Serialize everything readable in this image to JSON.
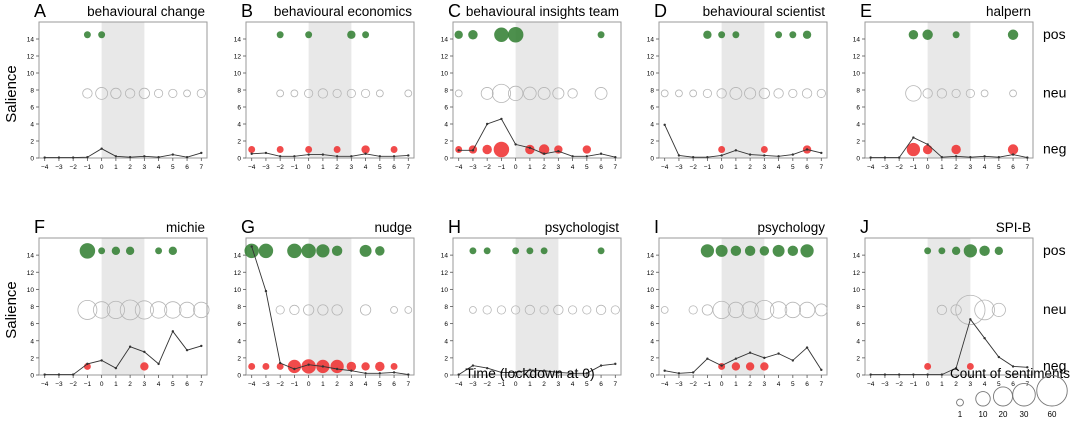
{
  "chart_data": {
    "type": "scatter",
    "figure": {
      "ylabel": "Salience",
      "xlabel": "Time (lockdown at 0)",
      "row_labels": [
        "pos",
        "neu",
        "neg"
      ],
      "x_ticks": [
        -4,
        -3,
        -2,
        -1,
        0,
        1,
        2,
        3,
        4,
        5,
        6,
        7
      ],
      "y_ticks": [
        0,
        2,
        4,
        6,
        8,
        10,
        12,
        14
      ],
      "xlim": [
        -4.4,
        7.4
      ],
      "ylim": [
        0,
        16
      ],
      "shaded_x": [
        0,
        3
      ],
      "sentiment_rows": {
        "pos": 14.5,
        "neu": 7.6,
        "neg": 1.0
      },
      "size_legend": {
        "title": "Count of sentiments",
        "values": [
          1,
          10,
          20,
          30,
          60
        ]
      },
      "colors": {
        "pos": "#2e7d2e",
        "neu": "#c8c8c8",
        "neg": "#ef2b2b",
        "line": "#333333",
        "shade": "#e8e8e8"
      }
    },
    "panels": [
      {
        "letter": "A",
        "title": "behavioural change",
        "line": [
          [
            -4,
            0.05
          ],
          [
            -3,
            0.05
          ],
          [
            -2,
            0.05
          ],
          [
            -1,
            0.1
          ],
          [
            0,
            1.1
          ],
          [
            1,
            0.2
          ],
          [
            2,
            0.1
          ],
          [
            3,
            0.2
          ],
          [
            4,
            0.1
          ],
          [
            5,
            0.4
          ],
          [
            6,
            0.1
          ],
          [
            7,
            0.6
          ]
        ],
        "pos": [
          [
            -1,
            1
          ],
          [
            0,
            1
          ]
        ],
        "neu": [
          [
            -1,
            3
          ],
          [
            0,
            6
          ],
          [
            1,
            4
          ],
          [
            2,
            3
          ],
          [
            3,
            4
          ],
          [
            4,
            2
          ],
          [
            5,
            2
          ],
          [
            6,
            1
          ],
          [
            7,
            2
          ]
        ],
        "neg": []
      },
      {
        "letter": "B",
        "title": "behavioural economics",
        "line": [
          [
            -4,
            0.5
          ],
          [
            -3,
            0.6
          ],
          [
            -2,
            0.2
          ],
          [
            -1,
            0.2
          ],
          [
            0,
            0.4
          ],
          [
            1,
            0.4
          ],
          [
            2,
            0.2
          ],
          [
            3,
            0.2
          ],
          [
            4,
            0.5
          ],
          [
            5,
            0.2
          ],
          [
            6,
            0.2
          ],
          [
            7,
            0.3
          ]
        ],
        "pos": [
          [
            -2,
            1
          ],
          [
            0,
            1
          ],
          [
            3,
            2
          ],
          [
            4,
            1
          ]
        ],
        "neu": [
          [
            -2,
            1
          ],
          [
            -1,
            1
          ],
          [
            0,
            2
          ],
          [
            1,
            3
          ],
          [
            2,
            2
          ],
          [
            3,
            2
          ],
          [
            4,
            2
          ],
          [
            5,
            1
          ],
          [
            7,
            1
          ]
        ],
        "neg": [
          [
            -4,
            1
          ],
          [
            -2,
            1
          ],
          [
            0,
            1
          ],
          [
            2,
            1
          ],
          [
            4,
            2
          ],
          [
            6,
            1
          ]
        ]
      },
      {
        "letter": "C",
        "title": "behavioural insights team",
        "line": [
          [
            -4,
            0.9
          ],
          [
            -3,
            0.9
          ],
          [
            -2,
            4.0
          ],
          [
            -1,
            4.6
          ],
          [
            0,
            1.6
          ],
          [
            1,
            1.2
          ],
          [
            2,
            0.5
          ],
          [
            3,
            0.8
          ],
          [
            4,
            0.2
          ],
          [
            5,
            0.2
          ],
          [
            6,
            0.5
          ],
          [
            7,
            0.1
          ]
        ],
        "pos": [
          [
            -4,
            2
          ],
          [
            -3,
            3
          ],
          [
            -1,
            10
          ],
          [
            0,
            12
          ],
          [
            6,
            1
          ]
        ],
        "neu": [
          [
            -4,
            1
          ],
          [
            -2,
            6
          ],
          [
            -1,
            18
          ],
          [
            0,
            10
          ],
          [
            1,
            7
          ],
          [
            2,
            6
          ],
          [
            3,
            5
          ],
          [
            4,
            3
          ],
          [
            6,
            6
          ]
        ],
        "neg": [
          [
            -4,
            1
          ],
          [
            -3,
            2
          ],
          [
            -2,
            3
          ],
          [
            -1,
            12
          ],
          [
            1,
            3
          ],
          [
            2,
            4
          ],
          [
            3,
            2
          ],
          [
            5,
            2
          ]
        ]
      },
      {
        "letter": "D",
        "title": "behavioural scientist",
        "line": [
          [
            -4,
            3.9
          ],
          [
            -3,
            0.3
          ],
          [
            -2,
            0.1
          ],
          [
            -1,
            0.1
          ],
          [
            0,
            0.3
          ],
          [
            1,
            0.9
          ],
          [
            2,
            0.4
          ],
          [
            3,
            0.3
          ],
          [
            4,
            0.2
          ],
          [
            5,
            0.4
          ],
          [
            6,
            1.0
          ],
          [
            7,
            0.6
          ]
        ],
        "pos": [
          [
            -1,
            2
          ],
          [
            0,
            1
          ],
          [
            1,
            1
          ],
          [
            4,
            1
          ],
          [
            5,
            1
          ],
          [
            6,
            2
          ]
        ],
        "neu": [
          [
            -4,
            1
          ],
          [
            -3,
            1
          ],
          [
            -2,
            1
          ],
          [
            -1,
            2
          ],
          [
            0,
            3
          ],
          [
            1,
            6
          ],
          [
            2,
            5
          ],
          [
            3,
            4
          ],
          [
            4,
            3
          ],
          [
            5,
            2
          ],
          [
            6,
            3
          ],
          [
            7,
            2
          ]
        ],
        "neg": [
          [
            0,
            1
          ],
          [
            3,
            1
          ],
          [
            6,
            2
          ]
        ]
      },
      {
        "letter": "E",
        "title": "halpern",
        "line": [
          [
            -4,
            0.05
          ],
          [
            -3,
            0.05
          ],
          [
            -2,
            0.05
          ],
          [
            -1,
            2.4
          ],
          [
            0,
            1.6
          ],
          [
            1,
            0.1
          ],
          [
            2,
            0.2
          ],
          [
            3,
            0.1
          ],
          [
            4,
            0.2
          ],
          [
            5,
            0.1
          ],
          [
            6,
            0.4
          ],
          [
            7,
            0.05
          ]
        ],
        "pos": [
          [
            -1,
            3
          ],
          [
            0,
            4
          ],
          [
            2,
            1
          ],
          [
            6,
            4
          ]
        ],
        "neu": [
          [
            -1,
            12
          ],
          [
            0,
            3
          ],
          [
            1,
            3
          ],
          [
            2,
            2
          ],
          [
            3,
            2
          ],
          [
            4,
            1
          ],
          [
            6,
            1
          ]
        ],
        "neg": [
          [
            -1,
            8
          ],
          [
            0,
            3
          ],
          [
            2,
            3
          ],
          [
            6,
            4
          ]
        ]
      },
      {
        "letter": "F",
        "title": "michie",
        "line": [
          [
            -4,
            0.05
          ],
          [
            -3,
            0.05
          ],
          [
            -2,
            0.05
          ],
          [
            -1,
            1.3
          ],
          [
            0,
            1.7
          ],
          [
            1,
            0.8
          ],
          [
            2,
            3.3
          ],
          [
            3,
            2.7
          ],
          [
            4,
            1.3
          ],
          [
            5,
            5.1
          ],
          [
            6,
            2.9
          ],
          [
            7,
            3.4
          ]
        ],
        "pos": [
          [
            -1,
            12
          ],
          [
            0,
            1
          ],
          [
            1,
            2
          ],
          [
            2,
            2
          ],
          [
            4,
            1
          ],
          [
            5,
            2
          ]
        ],
        "neu": [
          [
            -1,
            20
          ],
          [
            0,
            14
          ],
          [
            1,
            16
          ],
          [
            2,
            22
          ],
          [
            3,
            18
          ],
          [
            4,
            14
          ],
          [
            5,
            14
          ],
          [
            6,
            12
          ],
          [
            7,
            12
          ]
        ],
        "neg": [
          [
            -1,
            1
          ],
          [
            3,
            2
          ]
        ]
      },
      {
        "letter": "G",
        "title": "nudge",
        "line": [
          [
            -4,
            15.0
          ],
          [
            -3,
            9.8
          ],
          [
            -2,
            1.4
          ],
          [
            -1,
            0.7
          ],
          [
            0,
            1.2
          ],
          [
            1,
            1.0
          ],
          [
            2,
            0.7
          ],
          [
            3,
            0.5
          ],
          [
            4,
            0.2
          ],
          [
            5,
            0.2
          ],
          [
            6,
            0.3
          ],
          [
            7,
            0.05
          ]
        ],
        "pos": [
          [
            -4,
            10
          ],
          [
            -3,
            10
          ],
          [
            -1,
            10
          ],
          [
            0,
            10
          ],
          [
            1,
            8
          ],
          [
            2,
            4
          ],
          [
            4,
            6
          ],
          [
            5,
            3
          ]
        ],
        "neu": [
          [
            -2,
            2
          ],
          [
            -1,
            3
          ],
          [
            0,
            4
          ],
          [
            1,
            4
          ],
          [
            2,
            4
          ],
          [
            4,
            4
          ],
          [
            6,
            1
          ],
          [
            7,
            1
          ]
        ],
        "neg": [
          [
            -4,
            1
          ],
          [
            -3,
            1
          ],
          [
            -2,
            1
          ],
          [
            -1,
            8
          ],
          [
            0,
            10
          ],
          [
            1,
            8
          ],
          [
            2,
            8
          ],
          [
            3,
            3
          ],
          [
            4,
            2
          ],
          [
            5,
            3
          ],
          [
            6,
            1
          ]
        ]
      },
      {
        "letter": "H",
        "title": "psychologist",
        "line": [
          [
            -4,
            0.05
          ],
          [
            -3,
            1.1
          ],
          [
            -2,
            0.8
          ],
          [
            -1,
            0.3
          ],
          [
            0,
            0.3
          ],
          [
            1,
            0.6
          ],
          [
            2,
            0.5
          ],
          [
            3,
            0.3
          ],
          [
            4,
            0.2
          ],
          [
            5,
            0.2
          ],
          [
            6,
            1.1
          ],
          [
            7,
            1.3
          ]
        ],
        "pos": [
          [
            -3,
            1
          ],
          [
            -2,
            1
          ],
          [
            0,
            1
          ],
          [
            1,
            1
          ],
          [
            2,
            1
          ],
          [
            6,
            1
          ]
        ],
        "neu": [
          [
            -3,
            1
          ],
          [
            -2,
            2
          ],
          [
            -1,
            2
          ],
          [
            0,
            2
          ],
          [
            1,
            3
          ],
          [
            2,
            2
          ],
          [
            3,
            3
          ],
          [
            4,
            2
          ],
          [
            5,
            2
          ],
          [
            6,
            3
          ],
          [
            7,
            2
          ]
        ],
        "neg": []
      },
      {
        "letter": "I",
        "title": "psychology",
        "line": [
          [
            -4,
            0.5
          ],
          [
            -3,
            0.2
          ],
          [
            -2,
            0.3
          ],
          [
            -1,
            1.9
          ],
          [
            0,
            1.1
          ],
          [
            1,
            1.9
          ],
          [
            2,
            2.6
          ],
          [
            3,
            2.0
          ],
          [
            4,
            2.5
          ],
          [
            5,
            1.7
          ],
          [
            6,
            3.2
          ],
          [
            7,
            0.6
          ]
        ],
        "pos": [
          [
            -1,
            8
          ],
          [
            0,
            6
          ],
          [
            1,
            4
          ],
          [
            2,
            4
          ],
          [
            3,
            3
          ],
          [
            4,
            6
          ],
          [
            5,
            4
          ],
          [
            6,
            8
          ]
        ],
        "neu": [
          [
            -4,
            1
          ],
          [
            -2,
            2
          ],
          [
            -1,
            4
          ],
          [
            0,
            16
          ],
          [
            1,
            12
          ],
          [
            2,
            14
          ],
          [
            3,
            20
          ],
          [
            4,
            14
          ],
          [
            5,
            12
          ],
          [
            6,
            12
          ],
          [
            7,
            6
          ]
        ],
        "neg": [
          [
            0,
            1
          ],
          [
            1,
            2
          ],
          [
            2,
            2
          ],
          [
            3,
            2
          ]
        ]
      },
      {
        "letter": "J",
        "title": "SPI-B",
        "line": [
          [
            -4,
            0.05
          ],
          [
            -3,
            0.05
          ],
          [
            -2,
            0.05
          ],
          [
            -1,
            0.05
          ],
          [
            0,
            0.05
          ],
          [
            1,
            0.05
          ],
          [
            2,
            0.8
          ],
          [
            3,
            6.5
          ],
          [
            4,
            4.3
          ],
          [
            5,
            2.1
          ],
          [
            6,
            1.0
          ],
          [
            7,
            0.9
          ]
        ],
        "pos": [
          [
            0,
            1
          ],
          [
            1,
            1
          ],
          [
            2,
            2
          ],
          [
            3,
            8
          ],
          [
            4,
            4
          ],
          [
            5,
            2
          ]
        ],
        "neu": [
          [
            1,
            3
          ],
          [
            2,
            4
          ],
          [
            3,
            55
          ],
          [
            4,
            22
          ],
          [
            5,
            8
          ]
        ],
        "neg": [
          [
            0,
            1
          ],
          [
            3,
            1
          ]
        ]
      }
    ]
  }
}
